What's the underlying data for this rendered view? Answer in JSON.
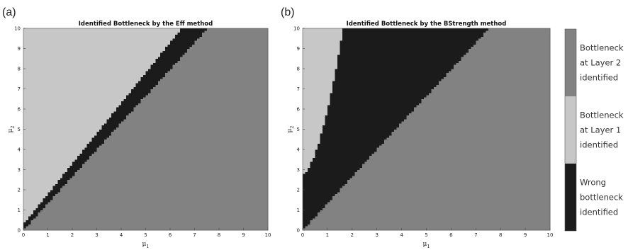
{
  "colors": {
    "layer2": "#828282",
    "layer1": "#c7c7c7",
    "wrong": "#1b1b1b"
  },
  "chart_data": [
    {
      "type": "heatmap",
      "panel_label": "(a)",
      "title": "Identified Bottleneck by the Eff method",
      "xlabel": "μ",
      "xlabel_sub": "1",
      "ylabel": "μ",
      "ylabel_sub": "2",
      "xlim": [
        0,
        10
      ],
      "ylim": [
        0,
        10
      ],
      "xticks": [
        "0",
        "1",
        "2",
        "3",
        "4",
        "5",
        "6",
        "7",
        "8",
        "9",
        "10"
      ],
      "yticks": [
        "0",
        "1",
        "2",
        "3",
        "4",
        "5",
        "6",
        "7",
        "8",
        "9",
        "10"
      ],
      "regions": [
        {
          "category": "Bottleneck at Layer 1 identified",
          "description": "upper-left region, above approx. μ2 = 1.5·μ1 + 0.3"
        },
        {
          "category": "Wrong bottleneck identified",
          "description": "thin band between approx. μ2 = 1.33·μ1 and μ2 = 1.5·μ1 + 0.3"
        },
        {
          "category": "Bottleneck at Layer 2 identified",
          "description": "lower-right region, below approx. μ2 = 1.33·μ1"
        }
      ],
      "boundaries": [
        {
          "name": "layer1_lower_edge",
          "points": [
            [
              0,
              0.3
            ],
            [
              6.47,
              10
            ]
          ]
        },
        {
          "name": "layer2_upper_edge",
          "points": [
            [
              0,
              0
            ],
            [
              7.5,
              10
            ]
          ]
        }
      ]
    },
    {
      "type": "heatmap",
      "panel_label": "(b)",
      "title": "Identified Bottleneck by the BStrength method",
      "xlabel": "μ",
      "xlabel_sub": "1",
      "ylabel": "μ",
      "ylabel_sub": "2",
      "xlim": [
        0,
        10
      ],
      "ylim": [
        0,
        10
      ],
      "xticks": [
        "0",
        "1",
        "2",
        "3",
        "4",
        "5",
        "6",
        "7",
        "8",
        "9",
        "10"
      ],
      "yticks": [
        "0",
        "1",
        "2",
        "3",
        "4",
        "5",
        "6",
        "7",
        "8",
        "9",
        "10"
      ],
      "regions": [
        {
          "category": "Bottleneck at Layer 1 identified",
          "description": "small sliver in upper-left corner, x below approx. 0.5·(μ2 − 2.8)^0.6"
        },
        {
          "category": "Wrong bottleneck identified",
          "description": "large wedge between the Layer 1 sliver and approx. μ2 = 1.33·μ1"
        },
        {
          "category": "Bottleneck at Layer 2 identified",
          "description": "lower-right region, below approx. μ2 = 1.33·μ1"
        }
      ],
      "boundaries": [
        {
          "name": "layer1_right_edge",
          "points": [
            [
              0.1,
              2.8
            ],
            [
              0.4,
              5
            ],
            [
              0.6,
              7
            ],
            [
              0.8,
              9
            ],
            [
              0.9,
              10
            ]
          ]
        },
        {
          "name": "layer2_upper_edge",
          "points": [
            [
              0,
              0
            ],
            [
              7.5,
              10
            ]
          ]
        }
      ]
    }
  ],
  "colorbar": {
    "entries": [
      {
        "category": "Bottleneck at Layer 2 identified",
        "lines": [
          "Bottleneck",
          "at Layer 2",
          "identified"
        ],
        "color": "#828282"
      },
      {
        "category": "Bottleneck at Layer 1 identified",
        "lines": [
          "Bottleneck",
          "at Layer 1",
          "identified"
        ],
        "color": "#c7c7c7"
      },
      {
        "category": "Wrong bottleneck identified",
        "lines": [
          "Wrong",
          "bottleneck",
          "identified"
        ],
        "color": "#1b1b1b"
      }
    ]
  }
}
